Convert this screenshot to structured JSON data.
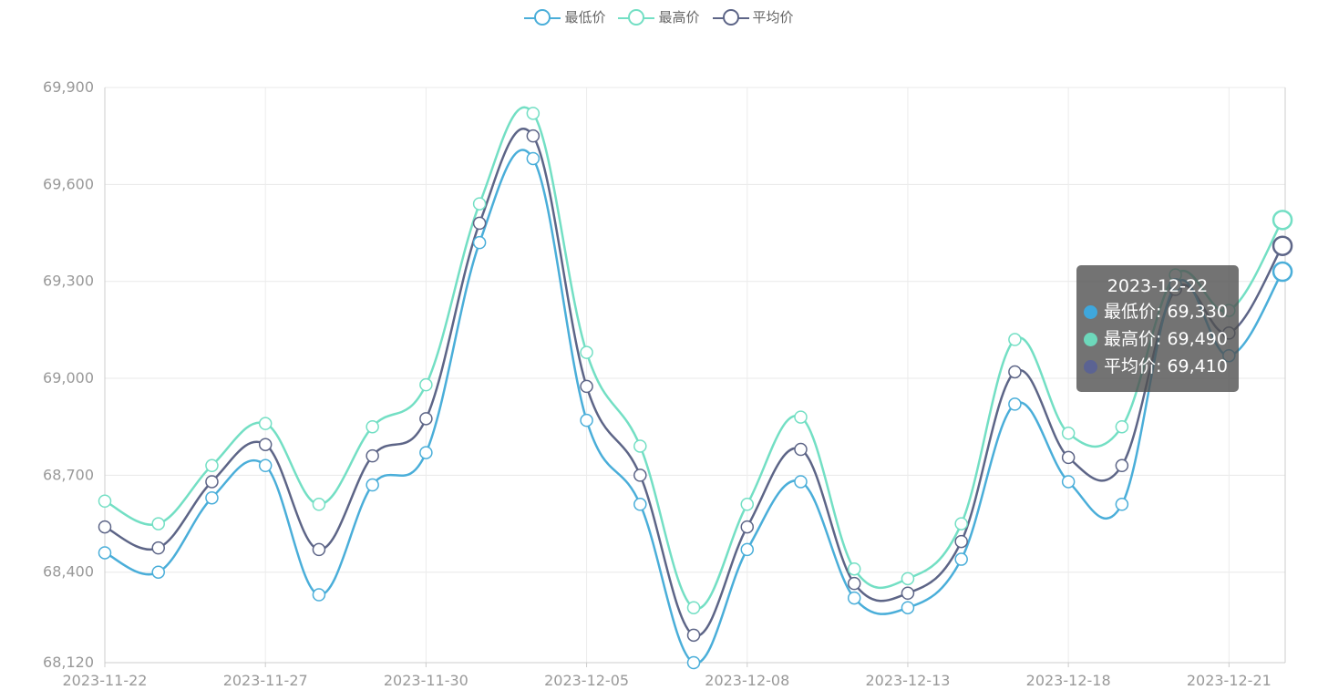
{
  "legend": [
    {
      "name": "最低价",
      "color": "#4aaed9"
    },
    {
      "name": "最高价",
      "color": "#73dfc4"
    },
    {
      "name": "平均价",
      "color": "#5d6587"
    }
  ],
  "tooltip": {
    "title": "2023-12-22",
    "rows": [
      {
        "label": "最低价: 69,330",
        "color": "#3fa7dc"
      },
      {
        "label": "最高价: 69,490",
        "color": "#6dd8bb"
      },
      {
        "label": "平均价: 69,410",
        "color": "#5b6393"
      }
    ]
  },
  "chart_data": {
    "type": "line",
    "smooth": true,
    "x": [
      "2023-11-22",
      "2023-11-23",
      "2023-11-24",
      "2023-11-27",
      "2023-11-28",
      "2023-11-29",
      "2023-11-30",
      "2023-12-01",
      "2023-12-04",
      "2023-12-05",
      "2023-12-06",
      "2023-12-07",
      "2023-12-08",
      "2023-12-11",
      "2023-12-12",
      "2023-12-13",
      "2023-12-14",
      "2023-12-15",
      "2023-12-18",
      "2023-12-19",
      "2023-12-20",
      "2023-12-21",
      "2023-12-22"
    ],
    "x_tick_labels": [
      "2023-11-22",
      "2023-11-27",
      "2023-11-30",
      "2023-12-05",
      "2023-12-08",
      "2023-12-13",
      "2023-12-18",
      "2023-12-21"
    ],
    "x_tick_indices": [
      0,
      3,
      6,
      9,
      12,
      15,
      18,
      21
    ],
    "ylim": [
      68120,
      69900
    ],
    "y_ticks": [
      68120,
      68400,
      68700,
      69000,
      69300,
      69600,
      69900
    ],
    "y_tick_labels": [
      "68,120",
      "68,400",
      "68,700",
      "69,000",
      "69,300",
      "69,600",
      "69,900"
    ],
    "grid": true,
    "legend_position": "top-center",
    "highlight_index": 22,
    "series": [
      {
        "name": "最低价",
        "color": "#4aaed9",
        "values": [
          68460,
          68400,
          68630,
          68730,
          68330,
          68670,
          68770,
          69420,
          69680,
          68870,
          68610,
          68120,
          68470,
          68680,
          68320,
          68290,
          68440,
          68920,
          68680,
          68610,
          69290,
          69070,
          69330
        ]
      },
      {
        "name": "最高价",
        "color": "#73dfc4",
        "values": [
          68620,
          68550,
          68730,
          68860,
          68610,
          68850,
          68980,
          69540,
          69820,
          69080,
          68790,
          68290,
          68610,
          68880,
          68410,
          68380,
          68550,
          69120,
          68830,
          68850,
          69320,
          69210,
          69490
        ]
      },
      {
        "name": "平均价",
        "color": "#5d6587",
        "values": [
          68540,
          68475,
          68680,
          68795,
          68470,
          68760,
          68875,
          69480,
          69750,
          68975,
          68700,
          68205,
          68540,
          68780,
          68365,
          68335,
          68495,
          69020,
          68755,
          68730,
          69275,
          69140,
          69410
        ]
      }
    ]
  }
}
